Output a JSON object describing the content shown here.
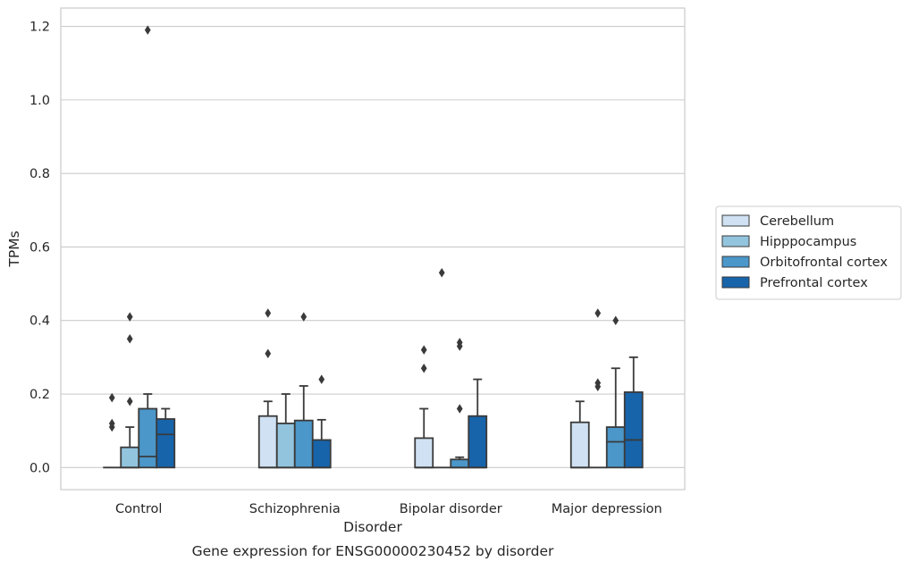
{
  "chart_data": {
    "type": "box",
    "title": "",
    "caption": "Gene expression for ENSG00000230452 by disorder",
    "xlabel": "Disorder",
    "ylabel": "TPMs",
    "categories": [
      "Control",
      "Schizophrenia",
      "Bipolar disorder",
      "Major depression"
    ],
    "ylim": [
      -0.06,
      1.25
    ],
    "yticks": [
      0.0,
      0.2,
      0.4,
      0.6,
      0.8,
      1.0,
      1.2
    ],
    "ytick_labels": [
      "0.0",
      "0.2",
      "0.4",
      "0.6",
      "0.8",
      "1.0",
      "1.2"
    ],
    "grid": true,
    "legend_position": "right",
    "series": [
      {
        "name": "Cerebellum",
        "color": "#cfe1f2",
        "boxes": [
          {
            "q1": 0.0,
            "median": 0.0,
            "q3": 0.0,
            "whislo": 0.0,
            "whishi": 0.0,
            "fliers": [
              0.19,
              0.12,
              0.11
            ]
          },
          {
            "q1": 0.0,
            "median": 0.0,
            "q3": 0.14,
            "whislo": 0.0,
            "whishi": 0.18,
            "fliers": [
              0.42,
              0.31
            ]
          },
          {
            "q1": 0.0,
            "median": 0.0,
            "q3": 0.08,
            "whislo": 0.0,
            "whishi": 0.16,
            "fliers": [
              0.32,
              0.27
            ]
          },
          {
            "q1": 0.0,
            "median": 0.0,
            "q3": 0.123,
            "whislo": 0.0,
            "whishi": 0.18,
            "fliers": []
          }
        ]
      },
      {
        "name": "Hipppocampus",
        "color": "#93c4de",
        "boxes": [
          {
            "q1": 0.0,
            "median": 0.0,
            "q3": 0.055,
            "whislo": 0.0,
            "whishi": 0.11,
            "fliers": [
              0.41,
              0.35,
              0.18
            ]
          },
          {
            "q1": 0.0,
            "median": 0.0,
            "q3": 0.12,
            "whislo": 0.0,
            "whishi": 0.2,
            "fliers": []
          },
          {
            "q1": 0.0,
            "median": 0.0,
            "q3": 0.0,
            "whislo": 0.0,
            "whishi": 0.0,
            "fliers": [
              0.53
            ]
          },
          {
            "q1": 0.0,
            "median": 0.0,
            "q3": 0.0,
            "whislo": 0.0,
            "whishi": 0.0,
            "fliers": [
              0.42,
              0.23,
              0.22
            ]
          }
        ]
      },
      {
        "name": "Orbitofrontal cortex",
        "color": "#4b97c9",
        "boxes": [
          {
            "q1": 0.0,
            "median": 0.03,
            "q3": 0.16,
            "whislo": 0.0,
            "whishi": 0.2,
            "fliers": [
              1.19
            ]
          },
          {
            "q1": 0.0,
            "median": 0.0,
            "q3": 0.128,
            "whislo": 0.0,
            "whishi": 0.222,
            "fliers": [
              0.41
            ]
          },
          {
            "q1": 0.0,
            "median": 0.0,
            "q3": 0.022,
            "whislo": 0.0,
            "whishi": 0.028,
            "fliers": [
              0.34,
              0.33,
              0.16
            ]
          },
          {
            "q1": 0.0,
            "median": 0.07,
            "q3": 0.11,
            "whislo": 0.0,
            "whishi": 0.27,
            "fliers": [
              0.4
            ]
          }
        ]
      },
      {
        "name": "Prefrontal cortex",
        "color": "#1764ab",
        "boxes": [
          {
            "q1": 0.0,
            "median": 0.09,
            "q3": 0.132,
            "whislo": 0.0,
            "whishi": 0.16,
            "fliers": []
          },
          {
            "q1": 0.0,
            "median": 0.0,
            "q3": 0.075,
            "whislo": 0.0,
            "whishi": 0.13,
            "fliers": [
              0.24
            ]
          },
          {
            "q1": 0.0,
            "median": 0.0,
            "q3": 0.14,
            "whislo": 0.0,
            "whishi": 0.24,
            "fliers": []
          },
          {
            "q1": 0.0,
            "median": 0.075,
            "q3": 0.205,
            "whislo": 0.0,
            "whishi": 0.3,
            "fliers": []
          }
        ]
      }
    ]
  }
}
